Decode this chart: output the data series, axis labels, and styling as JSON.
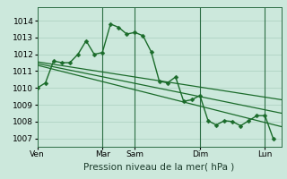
{
  "background_color": "#cce8dc",
  "grid_color": "#aacfbe",
  "line_color": "#1a6b2a",
  "marker_color": "#1a6b2a",
  "xlabel": "Pression niveau de la mer( hPa )",
  "ylim": [
    1006.5,
    1014.8
  ],
  "yticks": [
    1007,
    1008,
    1009,
    1010,
    1011,
    1012,
    1013,
    1014
  ],
  "day_labels": [
    "Ven",
    "Mar",
    "Sam",
    "Dim",
    "Lun"
  ],
  "day_positions": [
    0,
    48,
    72,
    120,
    168
  ],
  "vline_positions": [
    48,
    72,
    120,
    168
  ],
  "xlim": [
    0,
    180
  ],
  "main_series_x": [
    0,
    6,
    12,
    18,
    24,
    30,
    36,
    42,
    48,
    54,
    60,
    66,
    72,
    78,
    84,
    90,
    96,
    102,
    108,
    114,
    120,
    126,
    132,
    138,
    144,
    150,
    156,
    162,
    168,
    174
  ],
  "main_series_y": [
    1010.0,
    1010.3,
    1011.6,
    1011.5,
    1011.5,
    1012.0,
    1012.8,
    1012.0,
    1012.1,
    1013.8,
    1013.6,
    1013.2,
    1013.3,
    1013.1,
    1012.15,
    1010.4,
    1010.3,
    1010.65,
    1009.2,
    1009.3,
    1009.55,
    1008.05,
    1007.8,
    1008.05,
    1008.0,
    1007.75,
    1008.05,
    1008.35,
    1008.35,
    1007.0
  ],
  "trend_lines": [
    {
      "x": [
        0,
        180
      ],
      "y": [
        1011.55,
        1009.3
      ]
    },
    {
      "x": [
        0,
        180
      ],
      "y": [
        1011.45,
        1008.5
      ]
    },
    {
      "x": [
        0,
        180
      ],
      "y": [
        1011.35,
        1007.7
      ]
    }
  ],
  "tick_fontsize": 6.5,
  "xlabel_fontsize": 7.5
}
